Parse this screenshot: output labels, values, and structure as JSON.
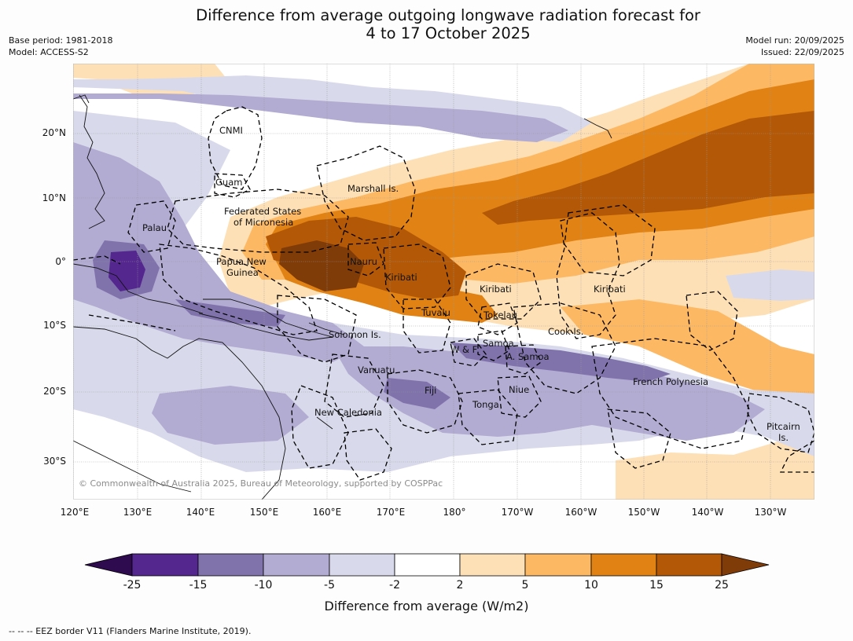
{
  "title": {
    "line1": "Difference from average outgoing longwave radiation forecast for",
    "line2": "4 to 17 October 2025"
  },
  "meta_left": {
    "base_period": "Base period: 1981-2018",
    "model": "Model: ACCESS-S2"
  },
  "meta_right": {
    "model_run": "Model run: 20/09/2025",
    "issued": "Issued: 22/09/2025"
  },
  "map": {
    "lat_ticks": [
      "20°N",
      "10°N",
      "0°",
      "10°S",
      "20°S",
      "30°S"
    ],
    "lon_ticks": [
      "120°E",
      "130°E",
      "140°E",
      "150°E",
      "160°E",
      "170°E",
      "180°",
      "170°W",
      "160°W",
      "150°W",
      "140°W",
      "130°W"
    ],
    "labels": {
      "cnmi": "CNMI",
      "guam": "Guam",
      "palau": "Palau",
      "marshall": "Marshall Is.",
      "fsm_1": "Federated States",
      "fsm_2": "of Micronesia",
      "png_1": "Papua New",
      "png_2": "Guinea",
      "nauru": "Nauru",
      "kiribati_w": "Kiribati",
      "kiribati_c": "Kiribati",
      "kiribati_e": "Kiribati",
      "tuvalu": "Tuvalu",
      "tokelau": "Tokelau",
      "cook": "Cook Is.",
      "solomon": "Solomon Is.",
      "samoa": "Samoa",
      "wf": "W & F",
      "asamoa": "A. Samoa",
      "vanuatu": "Vanuatu",
      "fiji": "Fiji",
      "niue": "Niue",
      "tonga": "Tonga",
      "french_polynesia": "French Polynesia",
      "new_caledonia": "New Caledonia",
      "pitcairn_1": "Pitcairn",
      "pitcairn_2": "Is."
    },
    "copyright": "© Commonwealth of Australia 2025, Bureau of Meteorology, supported by COSPPac"
  },
  "colorbar": {
    "labels": [
      "-25",
      "-15",
      "-10",
      "-5",
      "-2",
      "2",
      "5",
      "10",
      "15",
      "25"
    ],
    "title": "Difference from average (W/m2)",
    "colors": {
      "lt_neg25": "#2e0a4e",
      "neg25_15": "#54278f",
      "neg15_10": "#8073ac",
      "neg10_5": "#b2abd2",
      "neg5_2": "#d8daeb",
      "neutral": "#ffffff",
      "pos2_5": "#fee0b6",
      "pos5_10": "#fdb863",
      "pos10_15": "#e08214",
      "pos15_25": "#b35806",
      "gt_25": "#7f3b08"
    }
  },
  "footnote": "--  --  -- EEZ border V11 (Flanders Marine Institute, 2019)."
}
